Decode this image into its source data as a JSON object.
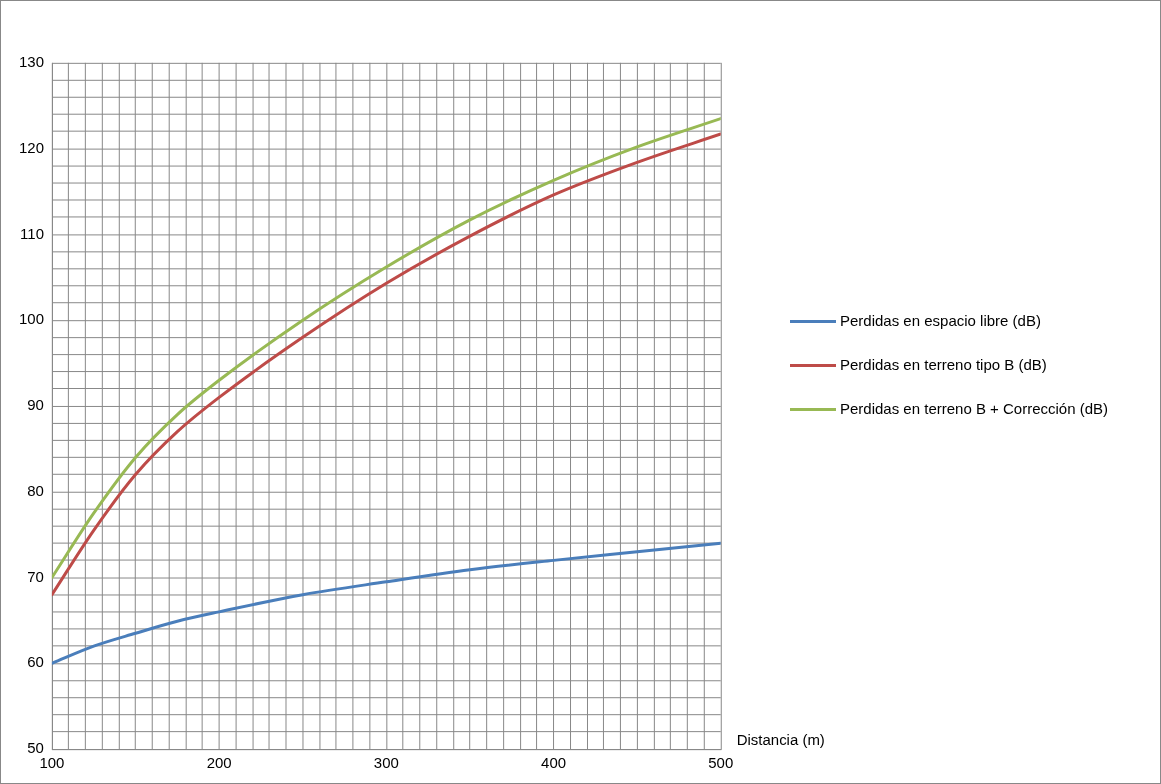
{
  "chart_data": {
    "type": "line",
    "xlabel": "Distancia (m)",
    "xlim": [
      100,
      500
    ],
    "xticks": [
      100,
      {
        "value": 110,
        "label": null
      },
      {
        "value": 120,
        "label": null
      },
      {
        "value": 130,
        "label": null
      },
      {
        "value": 140,
        "label": null
      },
      {
        "value": 150,
        "label": null
      },
      {
        "value": 160,
        "label": null
      },
      {
        "value": 170,
        "label": null
      },
      {
        "value": 180,
        "label": null
      },
      {
        "value": 190,
        "label": null
      },
      200,
      {
        "value": 210,
        "label": null
      },
      {
        "value": 220,
        "label": null
      },
      {
        "value": 230,
        "label": null
      },
      {
        "value": 240,
        "label": null
      },
      {
        "value": 250,
        "label": null
      },
      {
        "value": 260,
        "label": null
      },
      {
        "value": 270,
        "label": null
      },
      {
        "value": 280,
        "label": null
      },
      {
        "value": 290,
        "label": null
      },
      300,
      {
        "value": 310,
        "label": null
      },
      {
        "value": 320,
        "label": null
      },
      {
        "value": 330,
        "label": null
      },
      {
        "value": 340,
        "label": null
      },
      {
        "value": 350,
        "label": null
      },
      {
        "value": 360,
        "label": null
      },
      {
        "value": 370,
        "label": null
      },
      {
        "value": 380,
        "label": null
      },
      {
        "value": 390,
        "label": null
      },
      400,
      {
        "value": 410,
        "label": null
      },
      {
        "value": 420,
        "label": null
      },
      {
        "value": 430,
        "label": null
      },
      {
        "value": 440,
        "label": null
      },
      {
        "value": 450,
        "label": null
      },
      {
        "value": 460,
        "label": null
      },
      {
        "value": 470,
        "label": null
      },
      {
        "value": 480,
        "label": null
      },
      {
        "value": 490,
        "label": null
      },
      500
    ],
    "ylim": [
      50,
      130
    ],
    "yticks": [
      50,
      {
        "value": 52,
        "label": null
      },
      {
        "value": 54,
        "label": null
      },
      {
        "value": 56,
        "label": null
      },
      {
        "value": 58,
        "label": null
      },
      60,
      {
        "value": 62,
        "label": null
      },
      {
        "value": 64,
        "label": null
      },
      {
        "value": 66,
        "label": null
      },
      {
        "value": 68,
        "label": null
      },
      70,
      {
        "value": 72,
        "label": null
      },
      {
        "value": 74,
        "label": null
      },
      {
        "value": 76,
        "label": null
      },
      {
        "value": 78,
        "label": null
      },
      80,
      {
        "value": 82,
        "label": null
      },
      {
        "value": 84,
        "label": null
      },
      {
        "value": 86,
        "label": null
      },
      {
        "value": 88,
        "label": null
      },
      90,
      {
        "value": 92,
        "label": null
      },
      {
        "value": 94,
        "label": null
      },
      {
        "value": 96,
        "label": null
      },
      {
        "value": 98,
        "label": null
      },
      100,
      {
        "value": 102,
        "label": null
      },
      {
        "value": 104,
        "label": null
      },
      {
        "value": 106,
        "label": null
      },
      {
        "value": 108,
        "label": null
      },
      110,
      {
        "value": 112,
        "label": null
      },
      {
        "value": 114,
        "label": null
      },
      {
        "value": 116,
        "label": null
      },
      {
        "value": 118,
        "label": null
      },
      120,
      {
        "value": 122,
        "label": null
      },
      {
        "value": 124,
        "label": null
      },
      {
        "value": 126,
        "label": null
      },
      {
        "value": 128,
        "label": null
      },
      130
    ],
    "x": [
      100,
      125,
      150,
      175,
      200,
      250,
      300,
      350,
      400,
      450,
      500
    ],
    "grid": true,
    "legend": "right",
    "marker": "none",
    "line_style": "solid",
    "series": [
      {
        "name": "Perdidas en espacio libre (dB)",
        "color": "#4a7ebb",
        "values": [
          60,
          62,
          63.5,
          64.9,
          66,
          68,
          69.5,
          70.9,
          72,
          73,
          74
        ]
      },
      {
        "name": "Perdidas en terreno tipo B (dB)",
        "color": "#be4b48",
        "values": [
          68,
          75.5,
          82,
          87,
          91,
          98,
          104.3,
          109.8,
          114.6,
          118.4,
          121.7
        ]
      },
      {
        "name": "Perdidas en terreno B + Corrección (dB)",
        "color": "#98b954",
        "values": [
          70,
          77.5,
          84,
          89,
          93,
          100,
          106.2,
          111.7,
          116.3,
          120.2,
          123.5
        ]
      }
    ]
  }
}
